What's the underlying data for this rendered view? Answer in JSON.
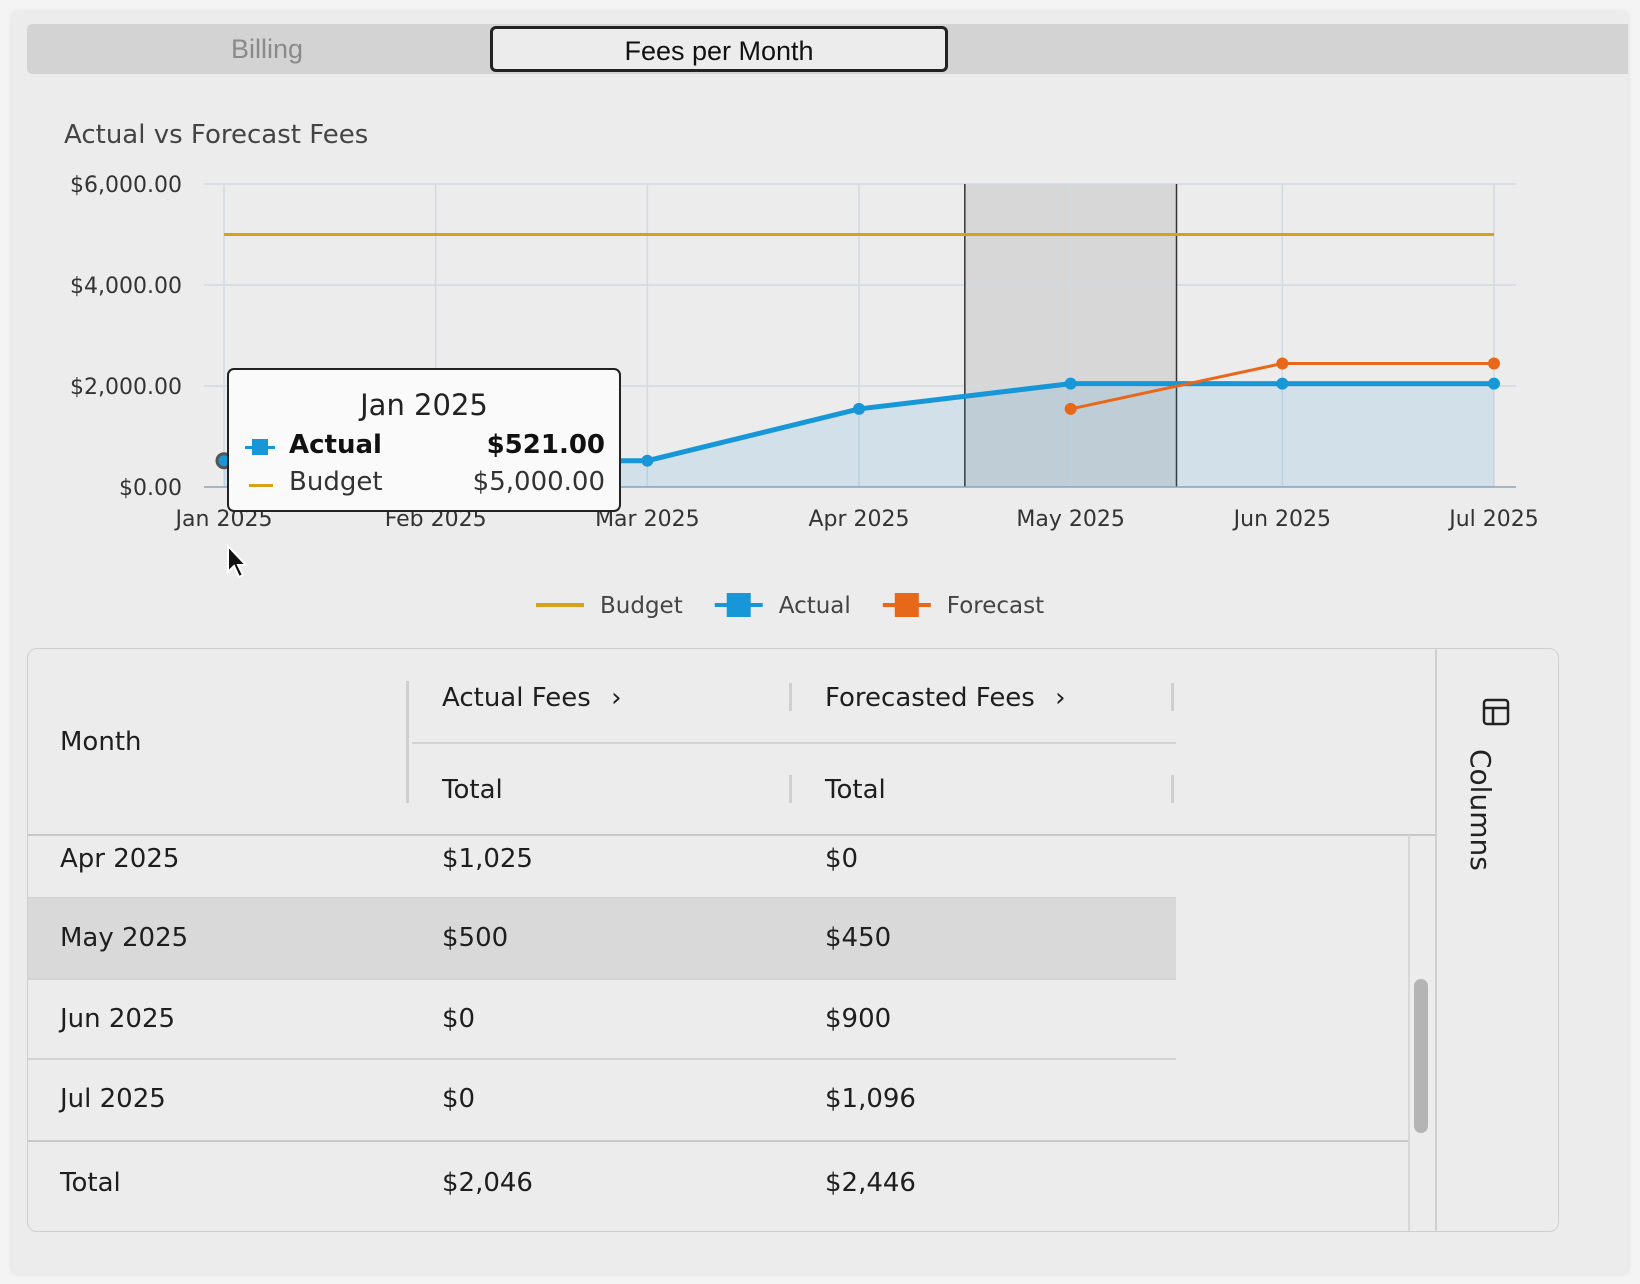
{
  "tabs": [
    {
      "label": "Billing"
    },
    {
      "label": "Fees per Month"
    }
  ],
  "chart_data": {
    "type": "line",
    "title": "Actual vs Forecast Fees",
    "categories": [
      "Jan 2025",
      "Feb 2025",
      "Mar 2025",
      "Apr 2025",
      "May 2025",
      "Jun 2025",
      "Jul 2025"
    ],
    "ylim": [
      0,
      6000
    ],
    "yticks": [
      "$0.00",
      "$2,000.00",
      "$4,000.00",
      "$6,000.00"
    ],
    "ytick_values": [
      0,
      2000,
      4000,
      6000
    ],
    "grid": true,
    "legend_position": "bottom",
    "highlight_band": [
      "Apr 2025",
      "Jun 2025"
    ],
    "highlight_band_fraction": [
      0.5,
      0.5
    ],
    "series": [
      {
        "name": "Budget",
        "color": "#d7a21a",
        "values": [
          5000,
          5000,
          5000,
          5000,
          5000,
          5000,
          5000
        ]
      },
      {
        "name": "Actual",
        "color": "#1797d8",
        "area": true,
        "values": [
          521,
          521,
          521,
          1546,
          2046,
          2046,
          2046
        ]
      },
      {
        "name": "Forecast",
        "color": "#e8681a",
        "values": [
          null,
          null,
          null,
          null,
          1546,
          2446,
          2446
        ]
      }
    ]
  },
  "tooltip": {
    "title": "Jan 2025",
    "rows": [
      {
        "name": "Actual",
        "value": "$521.00"
      },
      {
        "name": "Budget",
        "value": "$5,000.00"
      }
    ]
  },
  "grid": {
    "headers": {
      "month": "Month",
      "actual_group": "Actual Fees",
      "forecast_group": "Forecasted Fees",
      "actual_total": "Total",
      "forecast_total": "Total"
    },
    "rows": [
      {
        "month": "Apr 2025",
        "actual": "$1,025",
        "forecast": "$0"
      },
      {
        "month": "May 2025",
        "actual": "$500",
        "forecast": "$450"
      },
      {
        "month": "Jun 2025",
        "actual": "$0",
        "forecast": "$900"
      },
      {
        "month": "Jul 2025",
        "actual": "$0",
        "forecast": "$1,096"
      }
    ],
    "total": {
      "month": "Total",
      "actual": "$2,046",
      "forecast": "$2,446"
    },
    "side_panel_label": "Columns"
  }
}
